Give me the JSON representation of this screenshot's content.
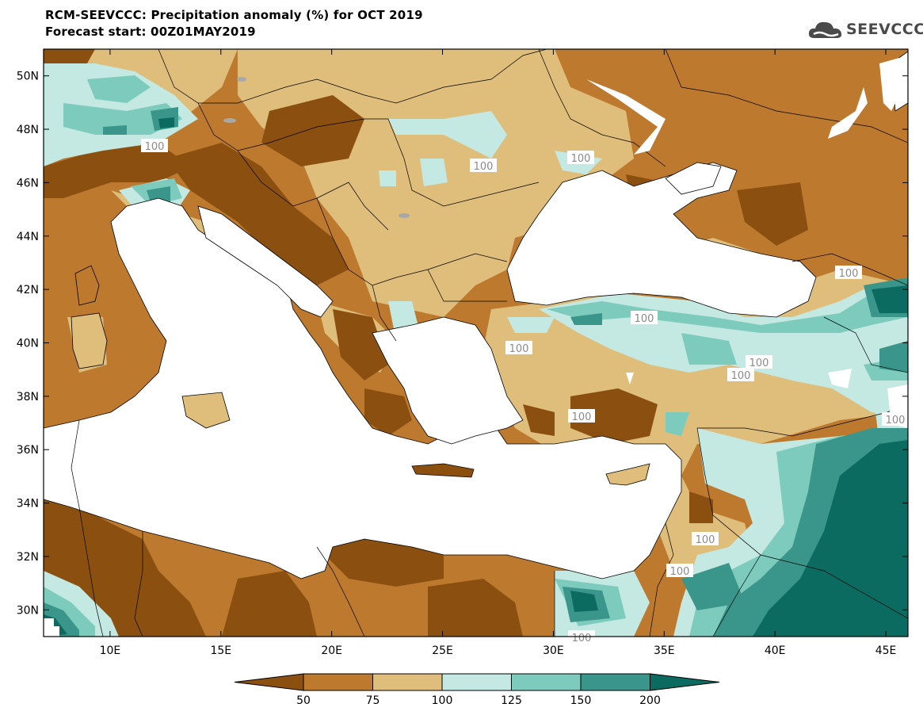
{
  "header": {
    "title_line1": "RCM-SEEVCCC: Precipitation anomaly (%) for OCT 2019",
    "title_line2": "Forecast start: 00Z01MAY2019",
    "logo_text": "SEEVCCC",
    "logo_icon": "cloud-icon"
  },
  "map": {
    "lon_range": [
      7,
      46
    ],
    "lat_range": [
      29,
      51
    ],
    "x_ticks": [
      "10E",
      "15E",
      "20E",
      "25E",
      "30E",
      "35E",
      "40E",
      "45E"
    ],
    "y_ticks": [
      "50N",
      "48N",
      "46N",
      "44N",
      "42N",
      "40N",
      "38N",
      "36N",
      "34N",
      "32N",
      "30N"
    ],
    "contour_labels": [
      "100",
      "100",
      "100",
      "100",
      "100",
      "100",
      "100",
      "100",
      "100",
      "100",
      "100",
      "100",
      "100"
    ]
  },
  "colorbar": {
    "labels": [
      "50",
      "75",
      "100",
      "125",
      "150",
      "200"
    ],
    "colors": [
      "#8b5010",
      "#bd7a2e",
      "#dfbd7b",
      "#c4e8e2",
      "#7ccbbd",
      "#3a968a",
      "#0b6b61"
    ]
  },
  "colors": {
    "water": "#ffffff",
    "grey_mask": "#a8a8a8"
  }
}
